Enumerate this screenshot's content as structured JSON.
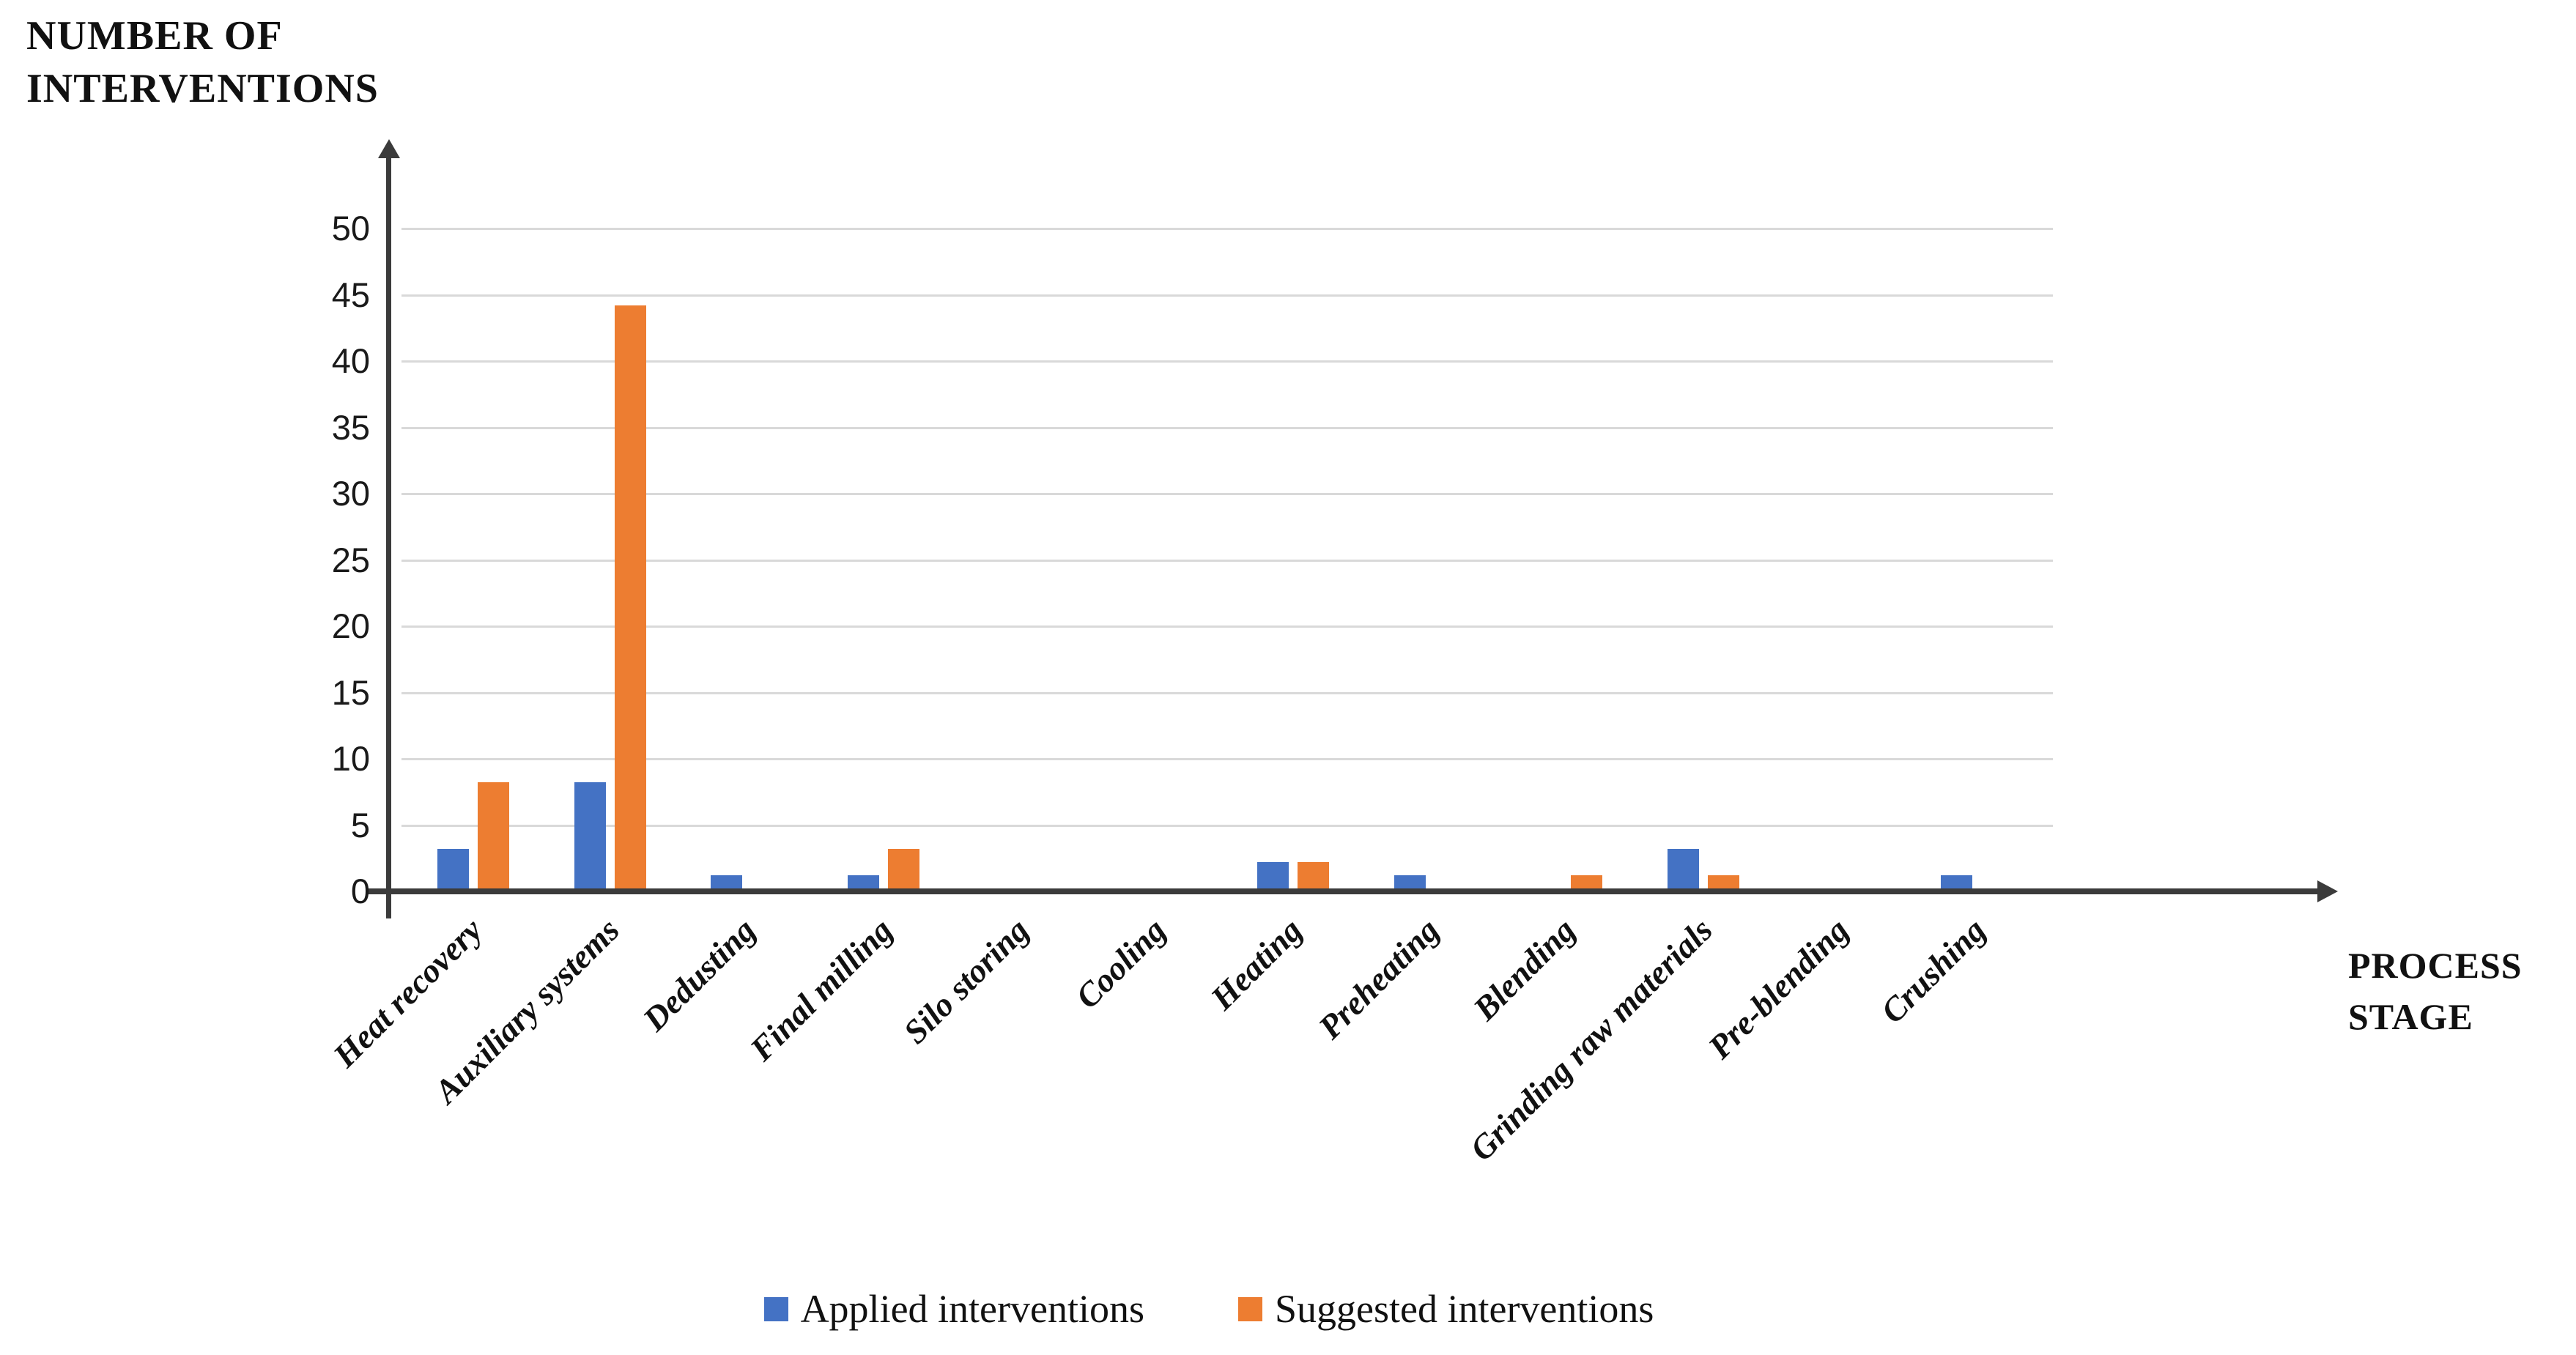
{
  "chart_data": {
    "type": "bar",
    "title": "",
    "y_axis_title": "NUMBER OF\nINTERVENTIONS",
    "x_axis_title": "PROCESS\nSTAGE",
    "categories": [
      "Heat recovery",
      "Auxiliary systems",
      "Dedusting",
      "Final milling",
      "Silo storing",
      "Cooling",
      "Heating",
      "Preheating",
      "Blending",
      "Grinding raw materials",
      "Pre-blending",
      "Crushing"
    ],
    "series": [
      {
        "name": "Applied interventions",
        "color": "#4472C4",
        "values": [
          3,
          8,
          1,
          1,
          0,
          0,
          2,
          1,
          0,
          3,
          0,
          1
        ]
      },
      {
        "name": "Suggested interventions",
        "color": "#ED7D31",
        "values": [
          8,
          44,
          0,
          3,
          0,
          0,
          2,
          0,
          1,
          1,
          0,
          0
        ]
      }
    ],
    "y_ticks": [
      0,
      5,
      10,
      15,
      20,
      25,
      30,
      35,
      40,
      45,
      50
    ],
    "ylim": [
      0,
      50
    ],
    "grid": "horizontal-major",
    "legend_position": "bottom",
    "axis_color": "#3B3B3B",
    "gridline_color": "#D9D9D9",
    "text_color": "#111111"
  }
}
